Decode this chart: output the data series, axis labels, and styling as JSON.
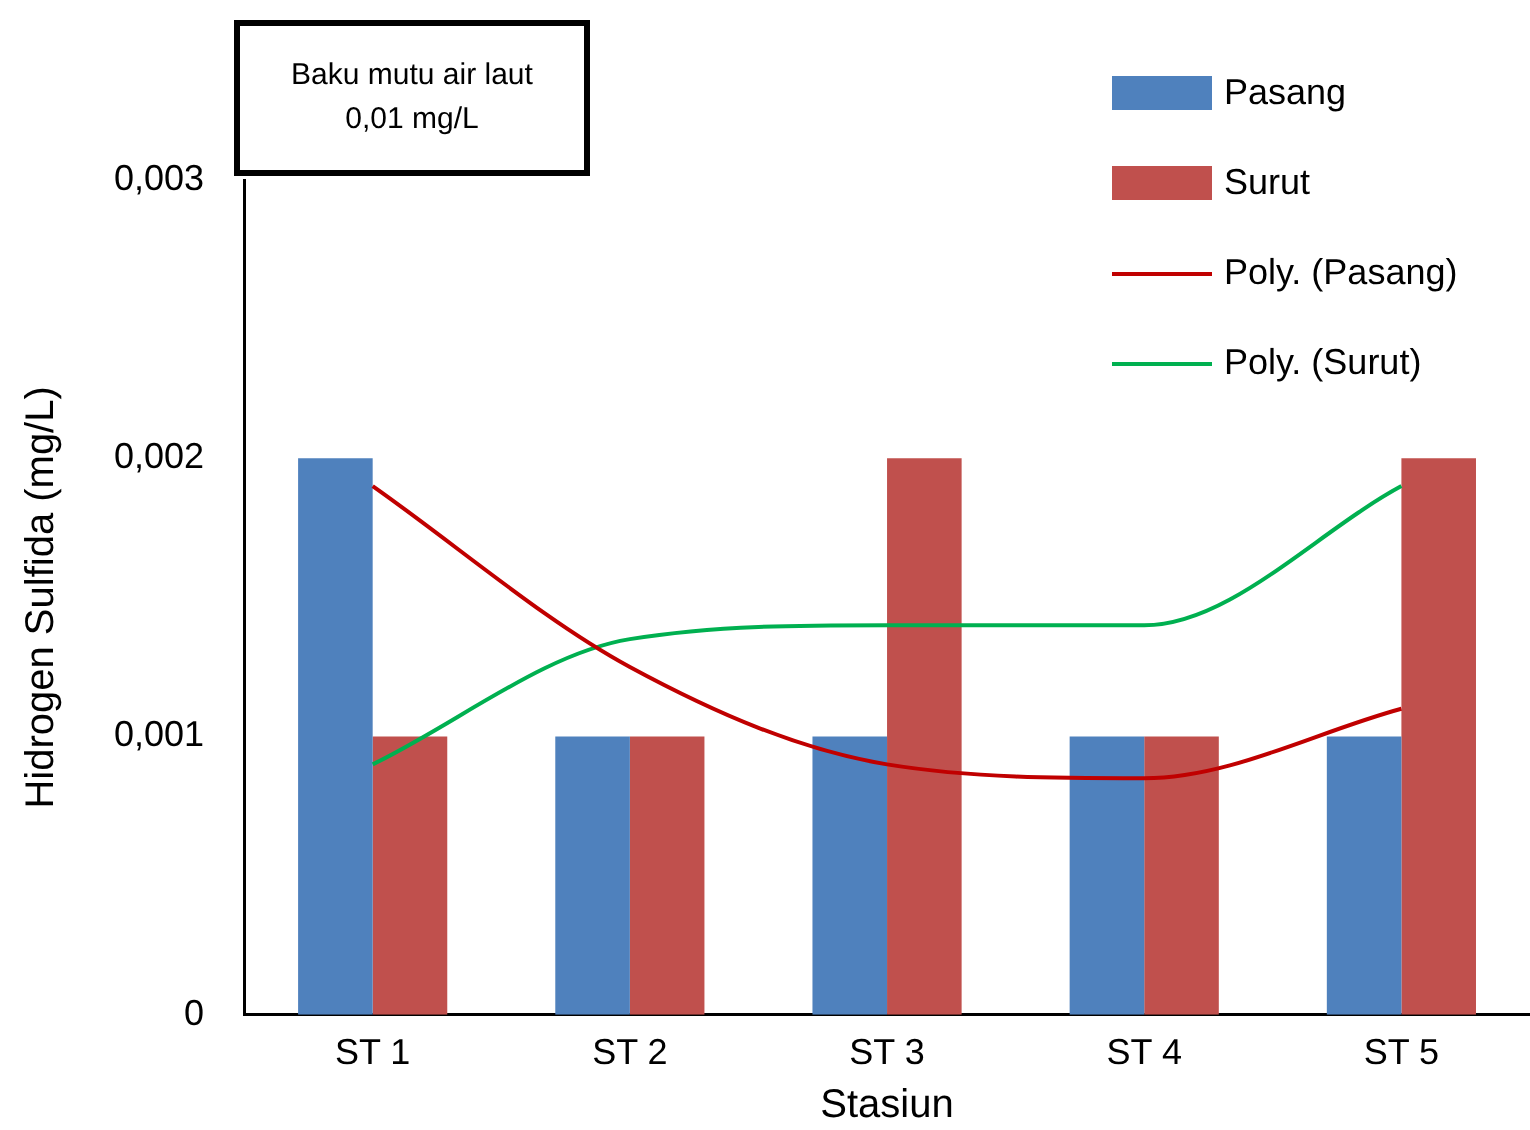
{
  "chart_data": {
    "type": "bar",
    "categories": [
      "ST 1",
      "ST 2",
      "ST 3",
      "ST 4",
      "ST 5"
    ],
    "series": [
      {
        "name": "Pasang",
        "color": "#4f81bd",
        "values": [
          0.002,
          0.001,
          0.001,
          0.001,
          0.001
        ]
      },
      {
        "name": "Surut",
        "color": "#c0504d",
        "values": [
          0.001,
          0.001,
          0.002,
          0.001,
          0.002
        ]
      },
      {
        "name": "Poly. (Pasang)",
        "type": "line",
        "color": "#c00000",
        "x": [
          "ST 1",
          "ST 2",
          "ST 3",
          "ST 4",
          "ST 5"
        ],
        "values": [
          0.0019,
          0.00125,
          0.0009,
          0.00085,
          0.0011
        ]
      },
      {
        "name": "Poly. (Surut)",
        "type": "line",
        "color": "#00b050",
        "x": [
          "ST 1",
          "ST 2",
          "ST 3",
          "ST 4",
          "ST 5"
        ],
        "values": [
          0.0009,
          0.00135,
          0.0014,
          0.0014,
          0.0019
        ]
      }
    ],
    "ylim": [
      0,
      0.003
    ],
    "yticks": [
      0,
      {
        "value": 0.001,
        "label": "0,001"
      },
      {
        "value": 0.002,
        "label": "0,002"
      },
      {
        "value": 0.003,
        "label": "0,003"
      }
    ],
    "xlabel": "Stasiun",
    "ylabel": "Hidrogen Sulfida (mg/L)",
    "annotations": [
      "Baku mutu air laut\n0,01 mg/L"
    ],
    "legend": "top right",
    "grid": false,
    "marker": "none",
    "line_style": "solid"
  }
}
